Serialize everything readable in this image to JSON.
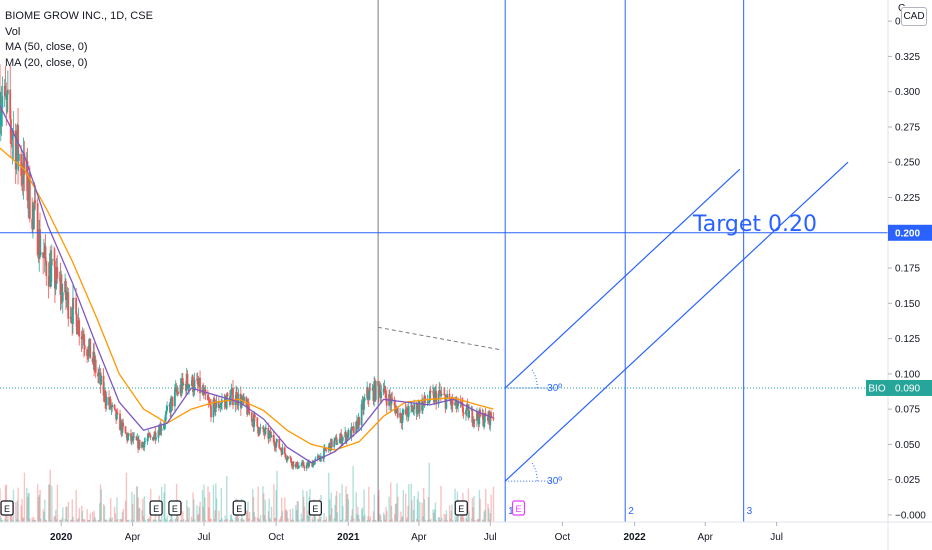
{
  "legend": {
    "symbol": "BIOME GROW INC., 1D, CSE",
    "vol": "Vol",
    "ma50": "MA (50, close, 0)",
    "ma20": "MA (20, close, 0)"
  },
  "currency_button": "CAD",
  "corner_char": "C",
  "colors": {
    "up": "#26a69a",
    "down": "#ef5350",
    "ma20": "#7e57c2",
    "ma50": "#ff9800",
    "drawing": "#2962ff",
    "price_tag": "#26a69a"
  },
  "chart_data": {
    "type": "candlestick",
    "title": "BIOME GROW INC., 1D, CSE",
    "y_axis": {
      "range": [
        -0.005,
        0.365
      ],
      "ticks": [
        "0.350",
        "0.325",
        "0.300",
        "0.275",
        "0.250",
        "0.225",
        "0.200",
        "0.175",
        "0.150",
        "0.125",
        "0.100",
        "0.075",
        "0.050",
        "0.025",
        "−0.000"
      ]
    },
    "x_axis": {
      "range": [
        "2019-10-15",
        "2022-11-20"
      ],
      "ticks": [
        {
          "label": "2020",
          "date": "2020-01-01",
          "bold": true
        },
        {
          "label": "Apr",
          "date": "2020-04-01"
        },
        {
          "label": "Jul",
          "date": "2020-07-01"
        },
        {
          "label": "Oct",
          "date": "2020-10-01"
        },
        {
          "label": "2021",
          "date": "2021-01-01",
          "bold": true
        },
        {
          "label": "Apr",
          "date": "2021-04-01"
        },
        {
          "label": "Jul",
          "date": "2021-07-01"
        },
        {
          "label": "Oct",
          "date": "2021-10-01"
        },
        {
          "label": "2022",
          "date": "2022-01-01",
          "bold": true
        },
        {
          "label": "Apr",
          "date": "2022-04-01"
        },
        {
          "label": "Jul",
          "date": "2022-07-01"
        }
      ]
    },
    "series_outline": {
      "close": [
        [
          "2019-10-15",
          0.3
        ],
        [
          "2019-11-01",
          0.27
        ],
        [
          "2019-11-20",
          0.23
        ],
        [
          "2019-12-10",
          0.18
        ],
        [
          "2020-01-01",
          0.16
        ],
        [
          "2020-01-20",
          0.14
        ],
        [
          "2020-02-10",
          0.11
        ],
        [
          "2020-02-25",
          0.085
        ],
        [
          "2020-03-10",
          0.07
        ],
        [
          "2020-03-25",
          0.055
        ],
        [
          "2020-04-10",
          0.05
        ],
        [
          "2020-04-25",
          0.055
        ],
        [
          "2020-05-10",
          0.065
        ],
        [
          "2020-05-25",
          0.085
        ],
        [
          "2020-06-10",
          0.095
        ],
        [
          "2020-06-25",
          0.09
        ],
        [
          "2020-07-10",
          0.075
        ],
        [
          "2020-07-25",
          0.08
        ],
        [
          "2020-08-10",
          0.085
        ],
        [
          "2020-08-25",
          0.075
        ],
        [
          "2020-09-10",
          0.06
        ],
        [
          "2020-09-25",
          0.055
        ],
        [
          "2020-10-10",
          0.045
        ],
        [
          "2020-10-25",
          0.035
        ],
        [
          "2020-11-10",
          0.035
        ],
        [
          "2020-11-25",
          0.04
        ],
        [
          "2020-12-10",
          0.05
        ],
        [
          "2020-12-25",
          0.055
        ],
        [
          "2021-01-10",
          0.06
        ],
        [
          "2021-01-25",
          0.085
        ],
        [
          "2021-02-10",
          0.09
        ],
        [
          "2021-02-25",
          0.08
        ],
        [
          "2021-03-10",
          0.07
        ],
        [
          "2021-03-25",
          0.075
        ],
        [
          "2021-04-10",
          0.08
        ],
        [
          "2021-04-25",
          0.085
        ],
        [
          "2021-05-10",
          0.08
        ],
        [
          "2021-05-25",
          0.075
        ],
        [
          "2021-06-10",
          0.07
        ],
        [
          "2021-06-25",
          0.068
        ],
        [
          "2021-07-05",
          0.07
        ]
      ],
      "ma20": [
        [
          "2019-10-15",
          0.29
        ],
        [
          "2019-11-15",
          0.255
        ],
        [
          "2019-12-15",
          0.205
        ],
        [
          "2020-01-15",
          0.165
        ],
        [
          "2020-02-15",
          0.12
        ],
        [
          "2020-03-15",
          0.08
        ],
        [
          "2020-04-15",
          0.06
        ],
        [
          "2020-05-15",
          0.065
        ],
        [
          "2020-06-15",
          0.09
        ],
        [
          "2020-07-15",
          0.085
        ],
        [
          "2020-08-15",
          0.08
        ],
        [
          "2020-09-15",
          0.068
        ],
        [
          "2020-10-15",
          0.048
        ],
        [
          "2020-11-15",
          0.037
        ],
        [
          "2020-12-15",
          0.045
        ],
        [
          "2021-01-15",
          0.06
        ],
        [
          "2021-02-15",
          0.082
        ],
        [
          "2021-03-15",
          0.08
        ],
        [
          "2021-04-15",
          0.078
        ],
        [
          "2021-05-15",
          0.082
        ],
        [
          "2021-06-15",
          0.073
        ],
        [
          "2021-07-05",
          0.069
        ]
      ],
      "ma50": [
        [
          "2019-10-15",
          0.26
        ],
        [
          "2019-11-15",
          0.245
        ],
        [
          "2019-12-15",
          0.215
        ],
        [
          "2020-01-15",
          0.18
        ],
        [
          "2020-02-15",
          0.14
        ],
        [
          "2020-03-15",
          0.1
        ],
        [
          "2020-04-15",
          0.075
        ],
        [
          "2020-05-15",
          0.065
        ],
        [
          "2020-06-15",
          0.075
        ],
        [
          "2020-07-15",
          0.08
        ],
        [
          "2020-08-15",
          0.082
        ],
        [
          "2020-09-15",
          0.074
        ],
        [
          "2020-10-15",
          0.06
        ],
        [
          "2020-11-15",
          0.05
        ],
        [
          "2020-12-15",
          0.046
        ],
        [
          "2021-01-15",
          0.052
        ],
        [
          "2021-02-15",
          0.07
        ],
        [
          "2021-03-15",
          0.08
        ],
        [
          "2021-04-15",
          0.082
        ],
        [
          "2021-05-15",
          0.083
        ],
        [
          "2021-06-15",
          0.078
        ],
        [
          "2021-07-05",
          0.075
        ]
      ]
    },
    "event_markers": [
      {
        "label": "E",
        "date": "2019-10-24"
      },
      {
        "label": "E",
        "date": "2020-05-01"
      },
      {
        "label": "E",
        "date": "2020-05-25"
      },
      {
        "label": "E",
        "date": "2020-08-15"
      },
      {
        "label": "E",
        "date": "2020-11-20"
      },
      {
        "label": "E",
        "date": "2021-05-25"
      },
      {
        "label": "E",
        "date": "2021-08-06",
        "future": true
      }
    ],
    "vertical_line_labels": [
      {
        "label": "1",
        "date": "2021-07-20"
      },
      {
        "label": "2",
        "date": "2021-12-20"
      },
      {
        "label": "3",
        "date": "2022-05-20"
      }
    ],
    "gray_vertical_date": "2021-02-08",
    "dashed_resistance": [
      [
        "2021-02-08",
        0.133
      ],
      [
        "2021-07-15",
        0.117
      ]
    ],
    "parallel_channel": {
      "upper": [
        [
          "2021-07-20",
          0.09
        ],
        [
          "2022-05-15",
          0.245
        ]
      ],
      "lower": [
        [
          "2021-07-20",
          0.024
        ],
        [
          "2022-09-30",
          0.25
        ]
      ]
    },
    "angle_labels": [
      {
        "label": "30º",
        "date": "2021-07-20",
        "value": 0.09
      },
      {
        "label": "30º",
        "date": "2021-07-20",
        "value": 0.024
      }
    ],
    "target_line": {
      "value": 0.2,
      "label": "Target 0.20"
    },
    "price_labels": [
      {
        "label": "0.200",
        "value": 0.2
      },
      {
        "label": "BIO",
        "value": 0.09
      },
      {
        "label": "0.090",
        "value": 0.09
      }
    ],
    "current_price": 0.09
  }
}
